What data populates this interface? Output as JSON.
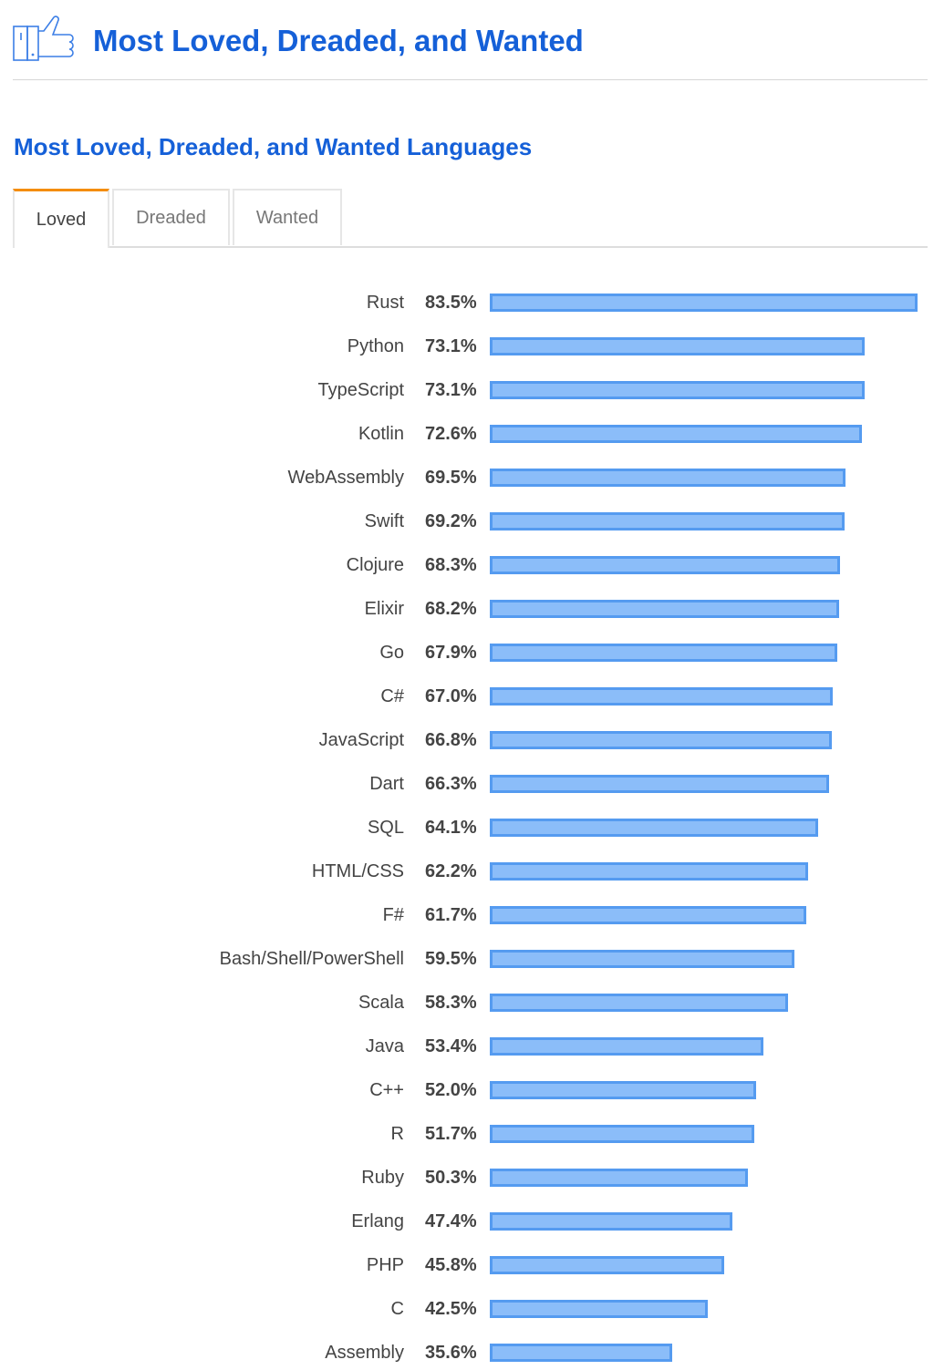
{
  "header": {
    "title": "Most Loved, Dreaded, and Wanted",
    "icon": "thumbs-up-icon"
  },
  "section": {
    "title": "Most Loved, Dreaded, and Wanted Languages"
  },
  "tabs": [
    {
      "label": "Loved",
      "active": true
    },
    {
      "label": "Dreaded",
      "active": false
    },
    {
      "label": "Wanted",
      "active": false
    }
  ],
  "colors": {
    "bar_fill": "#8bbdf9",
    "bar_border": "#559bf0",
    "accent": "#f48d0c",
    "title": "#1560d8"
  },
  "chart_data": {
    "type": "bar",
    "orientation": "horizontal",
    "title": "Loved",
    "xlabel": "",
    "ylabel": "",
    "xlim": [
      0,
      83.5
    ],
    "value_suffix": "%",
    "categories": [
      "Rust",
      "Python",
      "TypeScript",
      "Kotlin",
      "WebAssembly",
      "Swift",
      "Clojure",
      "Elixir",
      "Go",
      "C#",
      "JavaScript",
      "Dart",
      "SQL",
      "HTML/CSS",
      "F#",
      "Bash/Shell/PowerShell",
      "Scala",
      "Java",
      "C++",
      "R",
      "Ruby",
      "Erlang",
      "PHP",
      "C",
      "Assembly"
    ],
    "values": [
      83.5,
      73.1,
      73.1,
      72.6,
      69.5,
      69.2,
      68.3,
      68.2,
      67.9,
      67.0,
      66.8,
      66.3,
      64.1,
      62.2,
      61.7,
      59.5,
      58.3,
      53.4,
      52.0,
      51.7,
      50.3,
      47.4,
      45.8,
      42.5,
      35.6
    ],
    "labels": [
      "83.5%",
      "73.1%",
      "73.1%",
      "72.6%",
      "69.5%",
      "69.2%",
      "68.3%",
      "68.2%",
      "67.9%",
      "67.0%",
      "66.8%",
      "66.3%",
      "64.1%",
      "62.2%",
      "61.7%",
      "59.5%",
      "58.3%",
      "53.4%",
      "52.0%",
      "51.7%",
      "50.3%",
      "47.4%",
      "45.8%",
      "42.5%",
      "35.6%"
    ]
  }
}
